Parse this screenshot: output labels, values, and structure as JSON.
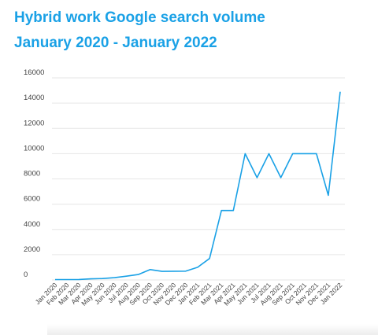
{
  "chart_data": {
    "type": "line",
    "title": "Hybrid work Google search volume",
    "subtitle": "January 2020 - January 2022",
    "categories": [
      "Jan 2020",
      "Feb 2020",
      "Mar 2020",
      "Apr 2020",
      "May 2020",
      "Jun 2020",
      "Jul 2020",
      "Aug 2020",
      "Sep 2020",
      "Oct 2020",
      "Nov 2020",
      "Dec 2020",
      "Jan 2021",
      "Feb 2021",
      "Mar 2021",
      "Apr 2021",
      "May 2021",
      "Jun 2021",
      "Jul 2021",
      "Aug 2021",
      "Sep 2021",
      "Oct 2021",
      "Nov 2021",
      "Dec 2021",
      "Jan 2022"
    ],
    "series": [
      {
        "values": [
          30,
          30,
          40,
          90,
          110,
          180,
          300,
          430,
          820,
          680,
          690,
          700,
          1000,
          1700,
          5500,
          5500,
          10000,
          8100,
          10000,
          8100,
          10000,
          10000,
          10000,
          6700,
          14900
        ]
      }
    ],
    "ylim": [
      0,
      16000
    ],
    "yticks": [
      0,
      2000,
      4000,
      6000,
      8000,
      10000,
      12000,
      14000,
      16000
    ],
    "xlabel": "",
    "ylabel": "",
    "grid": true,
    "line_color": "#1aa1e6",
    "grid_color": "#e6e6e6"
  }
}
